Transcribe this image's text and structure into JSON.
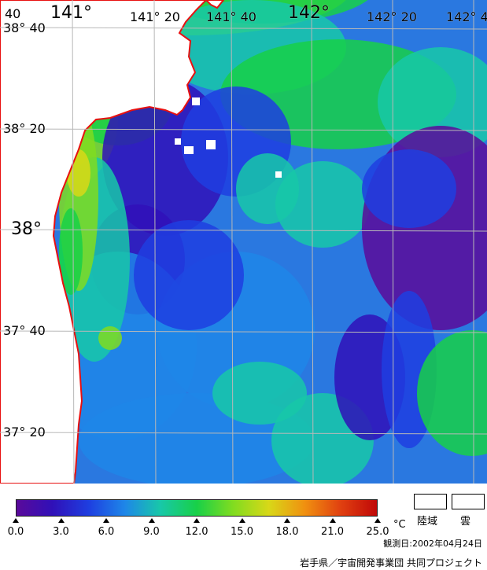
{
  "map": {
    "colors": {
      "land": "#ffffff",
      "coast": "#e81010",
      "grid": "#b8b8b8",
      "cloud": "#ffffff"
    },
    "lon_labels": [
      {
        "text": "141°",
        "big": true
      },
      {
        "text": "141° 20",
        "big": false
      },
      {
        "text": "141° 40",
        "big": false
      },
      {
        "text": "142°",
        "big": true
      },
      {
        "text": "142° 20",
        "big": false
      },
      {
        "text": "142° 4",
        "big": false
      }
    ],
    "lat_labels": [
      {
        "text": "38° 40",
        "big": false
      },
      {
        "text": "38° 20",
        "big": false
      },
      {
        "text": "38°",
        "big": true
      },
      {
        "text": "37° 40",
        "big": false
      },
      {
        "text": "37° 20",
        "big": false
      }
    ],
    "corner_label": "40"
  },
  "legend": {
    "scale_colors": [
      "#5a0a9a",
      "#3010b8",
      "#1e3ee0",
      "#1e86e8",
      "#18c8a8",
      "#18d048",
      "#80dc20",
      "#d8d818",
      "#f09010",
      "#e04010",
      "#c00808"
    ],
    "ticks": [
      "0.0",
      "3.0",
      "6.0",
      "9.0",
      "12.0",
      "15.0",
      "18.0",
      "21.0",
      "25.0"
    ],
    "unit": "°C",
    "land_label": "陸域",
    "cloud_label": "雲",
    "observation_date": "観測日:2002年04月24日",
    "credit": "岩手県／宇宙開発事業団 共同プロジェクト"
  }
}
